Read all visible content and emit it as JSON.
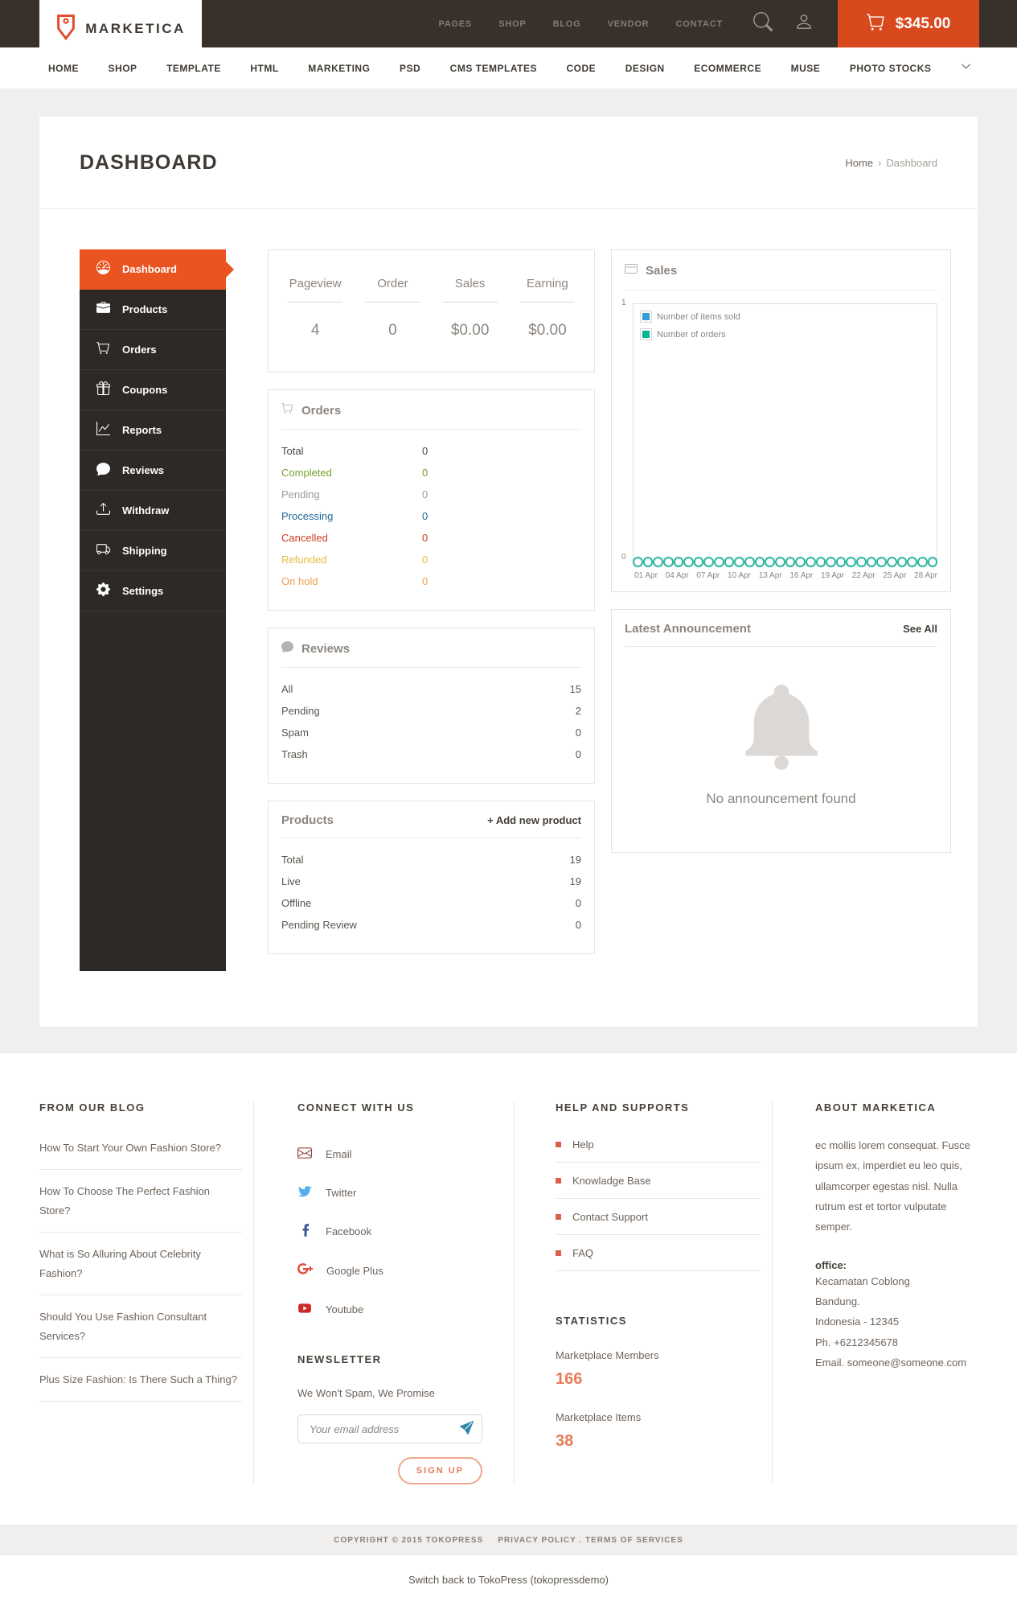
{
  "topbar": {
    "brand": "MARKETICA",
    "nav": [
      "PAGES",
      "SHOP",
      "BLOG",
      "VENDOR",
      "CONTACT"
    ],
    "cart_total": "$345.00"
  },
  "mainnav": {
    "items": [
      "HOME",
      "SHOP",
      "TEMPLATE",
      "HTML",
      "MARKETING",
      "PSD",
      "CMS TEMPLATES",
      "CODE",
      "DESIGN",
      "ECOMMERCE",
      "MUSE",
      "PHOTO STOCKS"
    ]
  },
  "page": {
    "title": "DASHBOARD",
    "breadcrumb": {
      "home": "Home",
      "sep": "›",
      "current": "Dashboard"
    }
  },
  "sidebar": {
    "items": [
      {
        "label": "Dashboard",
        "active": true
      },
      {
        "label": "Products",
        "active": false
      },
      {
        "label": "Orders",
        "active": false
      },
      {
        "label": "Coupons",
        "active": false
      },
      {
        "label": "Reports",
        "active": false
      },
      {
        "label": "Reviews",
        "active": false
      },
      {
        "label": "Withdraw",
        "active": false
      },
      {
        "label": "Shipping",
        "active": false
      },
      {
        "label": "Settings",
        "active": false
      }
    ]
  },
  "stats": {
    "items": [
      {
        "label": "Pageview",
        "value": "4"
      },
      {
        "label": "Order",
        "value": "0"
      },
      {
        "label": "Sales",
        "value": "$0.00"
      },
      {
        "label": "Earning",
        "value": "$0.00"
      }
    ]
  },
  "orders_panel": {
    "title": "Orders",
    "rows": [
      {
        "label": "Total",
        "value": "0",
        "color": "#4f4a45"
      },
      {
        "label": "Completed",
        "value": "0",
        "color": "#76a22e"
      },
      {
        "label": "Pending",
        "value": "0",
        "color": "#a29a94"
      },
      {
        "label": "Processing",
        "value": "0",
        "color": "#20679a"
      },
      {
        "label": "Cancelled",
        "value": "0",
        "color": "#d03b20"
      },
      {
        "label": "Refunded",
        "value": "0",
        "color": "#e0bf3c"
      },
      {
        "label": "On hold",
        "value": "0",
        "color": "#efa04f"
      }
    ]
  },
  "reviews_panel": {
    "title": "Reviews",
    "rows": [
      {
        "label": "All",
        "value": "15"
      },
      {
        "label": "Pending",
        "value": "2"
      },
      {
        "label": "Spam",
        "value": "0"
      },
      {
        "label": "Trash",
        "value": "0"
      }
    ]
  },
  "products_panel": {
    "title": "Products",
    "action": "+ Add new product",
    "rows": [
      {
        "label": "Total",
        "value": "19"
      },
      {
        "label": "Live",
        "value": "19"
      },
      {
        "label": "Offline",
        "value": "0"
      },
      {
        "label": "Pending Review",
        "value": "0"
      }
    ]
  },
  "sales_panel": {
    "title": "Sales"
  },
  "chart_data": {
    "type": "line",
    "title": "Sales",
    "x_ticks": [
      "01 Apr",
      "04 Apr",
      "07 Apr",
      "10 Apr",
      "13 Apr",
      "16 Apr",
      "19 Apr",
      "22 Apr",
      "25 Apr",
      "28 Apr"
    ],
    "series": [
      {
        "name": "Number of items sold",
        "color": "#2e9fd8",
        "values": [
          0,
          0,
          0,
          0,
          0,
          0,
          0,
          0,
          0,
          0,
          0,
          0,
          0,
          0,
          0,
          0,
          0,
          0,
          0,
          0,
          0,
          0,
          0,
          0,
          0,
          0,
          0,
          0,
          0,
          0
        ]
      },
      {
        "name": "Number of orders",
        "color": "#00b793",
        "values": [
          0,
          0,
          0,
          0,
          0,
          0,
          0,
          0,
          0,
          0,
          0,
          0,
          0,
          0,
          0,
          0,
          0,
          0,
          0,
          0,
          0,
          0,
          0,
          0,
          0,
          0,
          0,
          0,
          0,
          0
        ]
      }
    ],
    "ylim": [
      0,
      1
    ],
    "grid": false,
    "legend_position": "top-left",
    "point_color": "#2bb7a2"
  },
  "announcement_panel": {
    "title": "Latest Announcement",
    "action": "See All",
    "empty_message": "No announcement found"
  },
  "footer": {
    "blog": {
      "title": "FROM OUR BLOG",
      "posts": [
        "How To Start Your Own Fashion Store?",
        "How To Choose The Perfect Fashion Store?",
        "What is So Alluring About Celebrity Fashion?",
        "Should You Use Fashion Consultant Services?",
        "Plus Size Fashion: Is There Such a Thing?"
      ]
    },
    "connect": {
      "title": "CONNECT WITH US",
      "links": [
        {
          "label": "Email",
          "color": "#96493c"
        },
        {
          "label": "Twitter",
          "color": "#55acee"
        },
        {
          "label": "Facebook",
          "color": "#3b5998"
        },
        {
          "label": "Google Plus",
          "color": "#dd4b39"
        },
        {
          "label": "Youtube",
          "color": "#cc2a26"
        }
      ]
    },
    "newsletter": {
      "title": "NEWSLETTER",
      "tagline": "We Won't Spam, We Promise",
      "placeholder": "Your email address",
      "button": "SIGN UP"
    },
    "help": {
      "title": "HELP AND SUPPORTS",
      "links": [
        "Help",
        "Knowladge Base",
        "Contact Support",
        "FAQ"
      ]
    },
    "stats": {
      "title": "STATISTICS",
      "items": [
        {
          "label": "Marketplace Members",
          "value": "166"
        },
        {
          "label": "Marketplace Items",
          "value": "38"
        }
      ]
    },
    "about": {
      "title": "ABOUT MARKETICA",
      "text": "ec mollis lorem consequat. Fusce ipsum ex, imperdiet eu leo quis, ullamcorper egestas nisl. Nulla rutrum est et tortor vulputate semper.",
      "office_label": "office:",
      "address": [
        "Kecamatan Coblong",
        "Bandung.",
        "Indonesia - 12345",
        "Ph. +6212345678",
        "Email. someone@someone.com"
      ]
    }
  },
  "copyright": {
    "text": "COPYRIGHT © 2015 TOKOPRESS",
    "privacy": "PRIVACY POLICY",
    "sep": ".",
    "terms": "TERMS OF SERVICES"
  },
  "adminbar": {
    "text": "Switch back to TokoPress (tokopressdemo)"
  }
}
